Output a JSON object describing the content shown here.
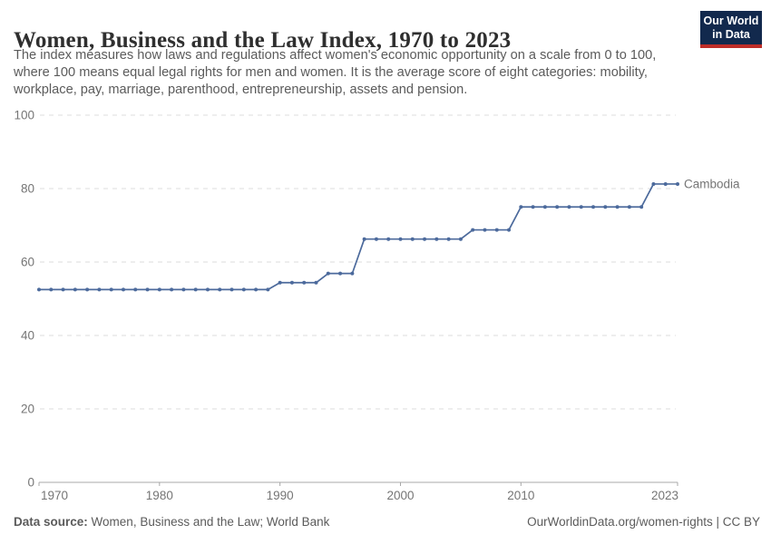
{
  "header": {
    "title": "Women, Business and the Law Index, 1970 to 2023",
    "subtitle_lines": [
      "The index measures how laws and regulations affect women's economic opportunity on a scale from 0 to 100,",
      "where 100 means equal legal rights for men and women. It is the average score of eight categories: mobility,",
      "workplace, pay, marriage, parenthood, entrepreneurship, assets and pension."
    ],
    "logo": {
      "line1": "Our World",
      "line2": "in Data",
      "bg_color": "#12294D",
      "stripe_color": "#BE2D28"
    }
  },
  "chart_data": {
    "type": "line",
    "title": "Women, Business and the Law Index, 1970 to 2023",
    "xlabel": "",
    "ylabel": "",
    "xlim": [
      1970,
      2023
    ],
    "ylim": [
      0,
      100
    ],
    "xticks": [
      1970,
      1980,
      1990,
      2000,
      2010,
      2023
    ],
    "yticks": [
      0,
      20,
      40,
      60,
      80,
      100
    ],
    "grid": "horizontal-dashed",
    "legend": "end-of-line-label",
    "grid_color": "#dcdcdc",
    "axis_color": "#a8a8a8",
    "tick_label_color": "#757575",
    "years": [
      1970,
      1971,
      1972,
      1973,
      1974,
      1975,
      1976,
      1977,
      1978,
      1979,
      1980,
      1981,
      1982,
      1983,
      1984,
      1985,
      1986,
      1987,
      1988,
      1989,
      1990,
      1991,
      1992,
      1993,
      1994,
      1995,
      1996,
      1997,
      1998,
      1999,
      2000,
      2001,
      2002,
      2003,
      2004,
      2005,
      2006,
      2007,
      2008,
      2009,
      2010,
      2011,
      2012,
      2013,
      2014,
      2015,
      2016,
      2017,
      2018,
      2019,
      2020,
      2021,
      2022,
      2023
    ],
    "series": [
      {
        "name": "Cambodia",
        "color": "#4C6A9C",
        "values": [
          52.5,
          52.5,
          52.5,
          52.5,
          52.5,
          52.5,
          52.5,
          52.5,
          52.5,
          52.5,
          52.5,
          52.5,
          52.5,
          52.5,
          52.5,
          52.5,
          52.5,
          52.5,
          52.5,
          52.5,
          54.375,
          54.375,
          54.375,
          54.375,
          56.875,
          56.875,
          56.875,
          66.25,
          66.25,
          66.25,
          66.25,
          66.25,
          66.25,
          66.25,
          66.25,
          66.25,
          68.75,
          68.75,
          68.75,
          68.75,
          75,
          75,
          75,
          75,
          75,
          75,
          75,
          75,
          75,
          75,
          75,
          81.25,
          81.25,
          81.25
        ]
      }
    ]
  },
  "footer": {
    "source_label": "Data source:",
    "source_text": "Women, Business and the Law; World Bank",
    "right_text": "OurWorldinData.org/women-rights | CC BY"
  }
}
